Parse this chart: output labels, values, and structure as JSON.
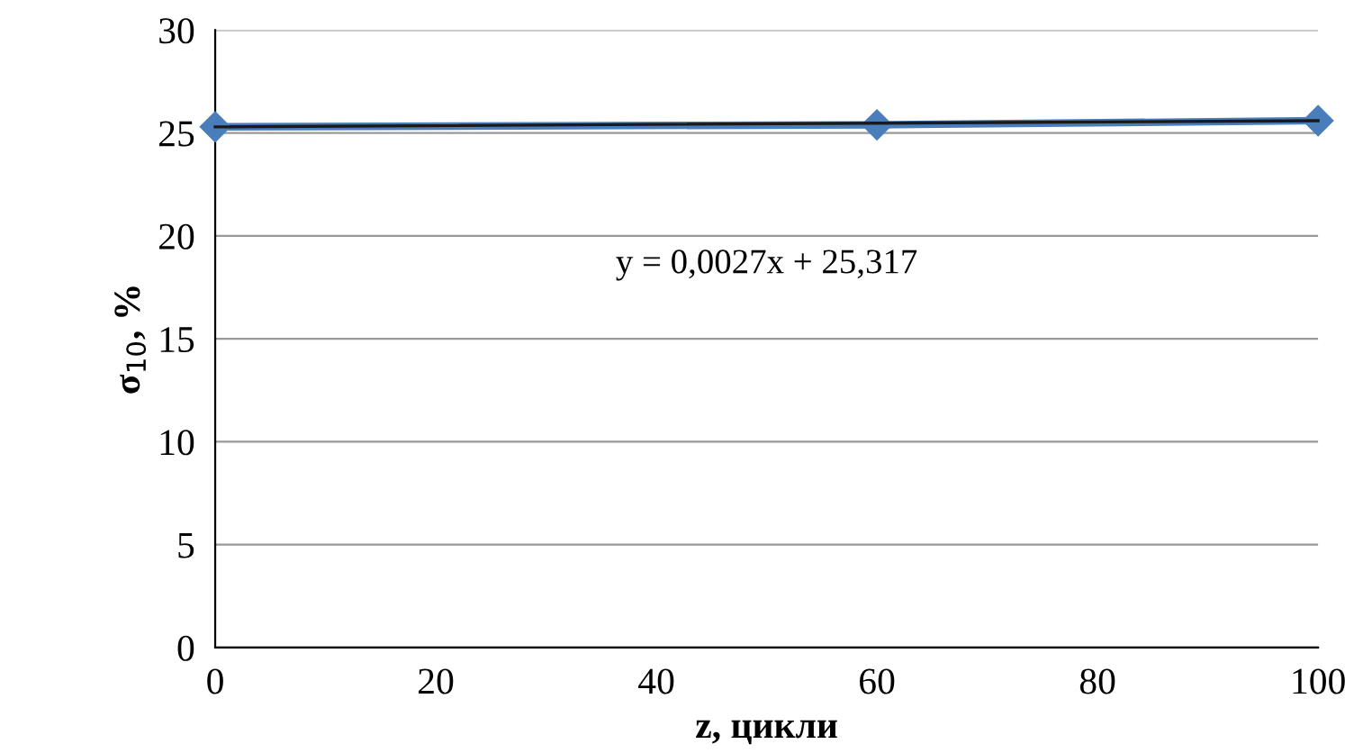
{
  "chart_data": {
    "type": "line",
    "xlabel": "z, цикли",
    "ylabel": "σ$_{10}$, %",
    "series": [
      {
        "color": "#4a7ebb",
        "x": [
          0,
          60,
          100
        ],
        "values": [
          25.3,
          25.4,
          25.6
        ],
        "marker": "diamond"
      },
      {
        "type": "line",
        "color": "#1a1a1a",
        "x": [
          0,
          100
        ],
        "values": [
          25.3,
          25.6
        ],
        "marker": "none"
      }
    ],
    "annotations": [
      "y = 0,0027x + 25,317"
    ],
    "xlim": [
      0,
      100
    ],
    "xticks": [
      0,
      20,
      40,
      60,
      80,
      100
    ],
    "ylim": [
      0,
      30
    ],
    "yticks": [
      0,
      5,
      10,
      15,
      20,
      25,
      30
    ],
    "grid": "y",
    "legend": false
  }
}
